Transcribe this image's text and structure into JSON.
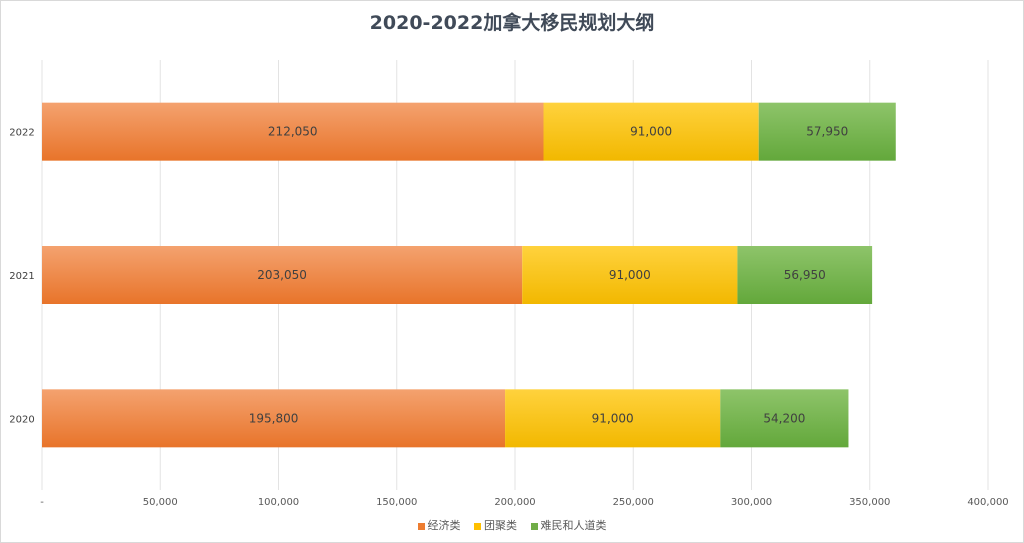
{
  "chart_data": {
    "type": "bar",
    "orientation": "horizontal",
    "stacked": true,
    "title": "2020-2022加拿大移民规划大纲",
    "categories": [
      "2020",
      "2021",
      "2022"
    ],
    "series": [
      {
        "name": "经济类",
        "values": [
          195800,
          203050,
          212050
        ],
        "labels": [
          "195,800",
          "203,050",
          "212,050"
        ],
        "color": "#ed7d31"
      },
      {
        "name": "团聚类",
        "values": [
          91000,
          91000,
          91000
        ],
        "labels": [
          "91,000",
          "91,000",
          "91,000"
        ],
        "color": "#ffc000"
      },
      {
        "name": "难民和人道类",
        "values": [
          54200,
          56950,
          57950
        ],
        "labels": [
          "54,200",
          "56,950",
          "57,950"
        ],
        "color": "#70ad47"
      }
    ],
    "xlim": [
      0,
      400000
    ],
    "xticks": [
      0,
      50000,
      100000,
      150000,
      200000,
      250000,
      300000,
      350000,
      400000
    ],
    "xtick_labels": [
      "-",
      "50,000",
      "100,000",
      "150,000",
      "200,000",
      "250,000",
      "300,000",
      "350,000",
      "400,000"
    ],
    "grid": true,
    "legend_position": "bottom"
  }
}
